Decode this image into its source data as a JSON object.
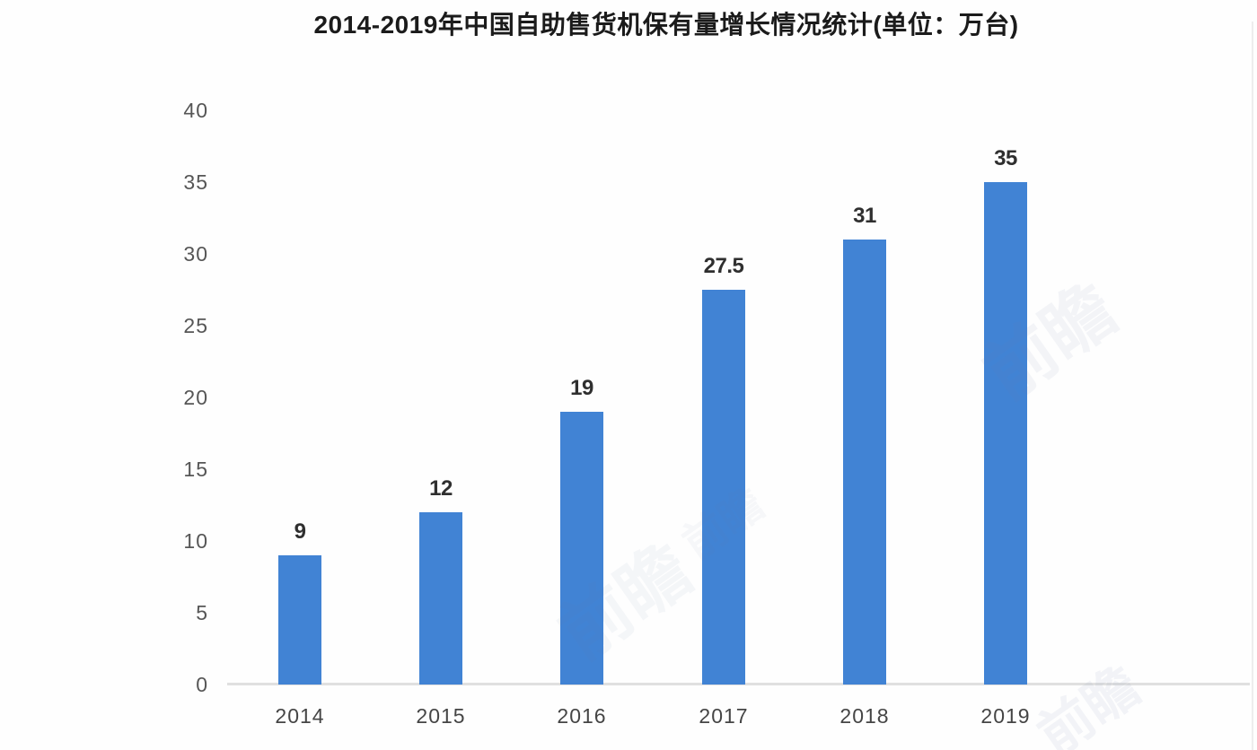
{
  "chart_data": {
    "type": "bar",
    "title": "2014-2019年中国自助售货机保有量增长情况统计(单位：万台)",
    "categories": [
      "2014",
      "2015",
      "2016",
      "2017",
      "2018",
      "2019"
    ],
    "values": [
      9,
      12,
      19,
      27.5,
      31,
      35
    ],
    "value_labels": [
      "9",
      "12",
      "19",
      "27.5",
      "31",
      "35"
    ],
    "xlabel": "",
    "ylabel": "",
    "unit": "万台",
    "ylim": [
      0,
      40
    ],
    "yticks": [
      0,
      5,
      10,
      15,
      20,
      25,
      30,
      35,
      40
    ],
    "grid": false,
    "legend_position": "none",
    "bar_color": "#4183d4",
    "axis_line_color": "#e0e0e0"
  },
  "watermark": {
    "text": "前瞻"
  },
  "colors": {
    "title_text": "#1b1b1b",
    "ytick_text": "#565656",
    "xtick_text": "#454545",
    "value_text": "#2f2f2f"
  }
}
